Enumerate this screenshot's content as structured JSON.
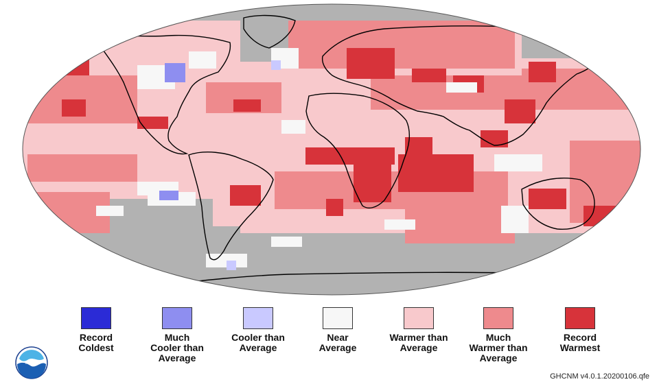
{
  "palette": {
    "record_coldest": "#2b2bd6",
    "much_cooler": "#8e8ef0",
    "cooler": "#c9c9ff",
    "near": "#f7f7f7",
    "warmer": "#f8c9cc",
    "much_warmer": "#ee8a8d",
    "record_warmest": "#d7333a",
    "no_data": "#b2b2b2",
    "coast": "#000000"
  },
  "legend": [
    {
      "label": "Record\nColdest",
      "color_key": "record_coldest"
    },
    {
      "label": "Much\nCooler than\nAverage",
      "color_key": "much_cooler"
    },
    {
      "label": "Cooler than\nAverage",
      "color_key": "cooler"
    },
    {
      "label": "Near\nAverage",
      "color_key": "near"
    },
    {
      "label": "Warmer than\nAverage",
      "color_key": "warmer"
    },
    {
      "label": "Much\nWarmer than\nAverage",
      "color_key": "much_warmer"
    },
    {
      "label": "Record\nWarmest",
      "color_key": "record_warmest"
    }
  ],
  "logo": {
    "text": "NOAA",
    "icon": "noaa-logo-icon"
  },
  "version": "GHCNM v4.0.1.20200106.qfe"
}
